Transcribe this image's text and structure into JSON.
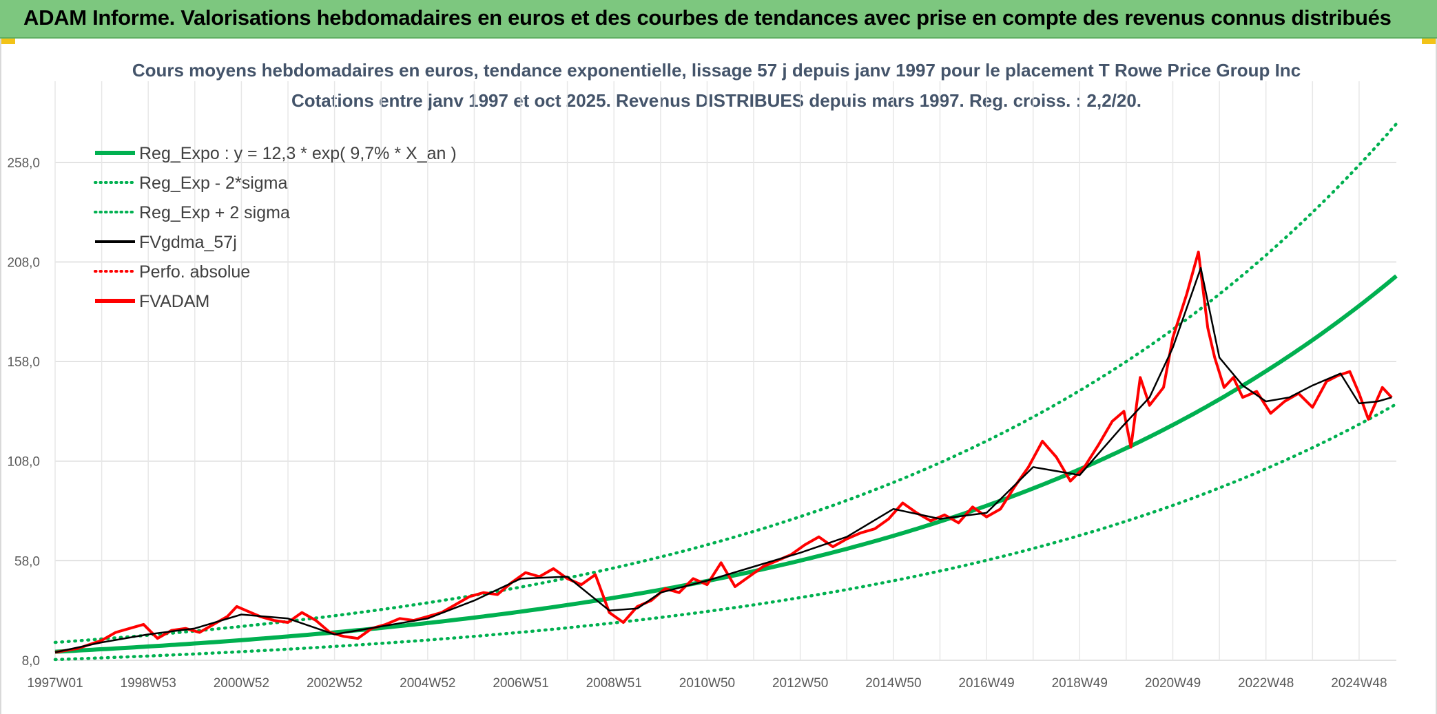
{
  "banner": {
    "title": "ADAM Informe. Valorisations hebdomadaires en euros et des courbes de tendances avec prise en compte des revenus connus distribués"
  },
  "colors": {
    "banner_bg": "#7dc77f",
    "regression": "#00b050",
    "smooth": "#000000",
    "fvadam": "#ff0000",
    "grid": "#d9d9d9"
  },
  "chart_data": {
    "type": "line",
    "title": "Cours moyens hebdomadaires en euros, tendance exponentielle, lissage 57 j depuis janv 1997 pour le placement T Rowe Price Group Inc",
    "subtitle": "Cotations entre janv 1997 et oct 2025. Revenus DISTRIBUES depuis mars 1997. Reg. croiss. : 2,2/20.",
    "xlabel": "",
    "ylabel": "",
    "ylim": [
      8,
      278
    ],
    "xlim": [
      1997.0,
      2025.8
    ],
    "y_ticks": [
      "258,0",
      "208,0",
      "158,0",
      "108,0",
      "58,0",
      "8,0"
    ],
    "y_tick_values": [
      258,
      208,
      158,
      108,
      58,
      8
    ],
    "x_ticks": [
      "1997W01",
      "1998W53",
      "2000W52",
      "2002W52",
      "2004W52",
      "2006W51",
      "2008W51",
      "2010W50",
      "2012W50",
      "2014W50",
      "2016W49",
      "2018W49",
      "2020W49",
      "2022W48",
      "2024W48"
    ],
    "x_tick_values": [
      1997.0,
      1999.0,
      2001.0,
      2003.0,
      2005.0,
      2007.0,
      2009.0,
      2011.0,
      2013.0,
      2015.0,
      2017.0,
      2019.0,
      2021.0,
      2023.0,
      2025.0
    ],
    "grid": true,
    "legend_position": "top-left",
    "legend": [
      {
        "label": "Reg_Expo : y = 12,3 * exp( 9,7% *  X_an )",
        "color": "#00b050",
        "style": "solid-thick"
      },
      {
        "label": "Reg_Exp - 2*sigma",
        "color": "#00b050",
        "style": "dotted"
      },
      {
        "label": "Reg_Exp + 2 sigma",
        "color": "#00b050",
        "style": "dotted"
      },
      {
        "label": "FVgdma_57j",
        "color": "#000000",
        "style": "solid"
      },
      {
        "label": "Perfo. absolue",
        "color": "#ff0000",
        "style": "dotted"
      },
      {
        "label": "FVADAM",
        "color": "#ff0000",
        "style": "solid-thick"
      }
    ],
    "regression": {
      "a": 12.3,
      "rate": 0.097,
      "lower_factor": 0.68,
      "upper_factor": 1.38
    },
    "series": [
      {
        "name": "FVADAM",
        "x": [
          1997.0,
          1997.5,
          1998.0,
          1998.3,
          1998.6,
          1998.9,
          1999.2,
          1999.5,
          1999.8,
          2000.1,
          2000.4,
          2000.7,
          2000.9,
          2001.1,
          2001.4,
          2001.7,
          2002.0,
          2002.3,
          2002.6,
          2002.9,
          2003.2,
          2003.5,
          2003.8,
          2004.1,
          2004.4,
          2004.7,
          2005.0,
          2005.3,
          2005.6,
          2005.9,
          2006.2,
          2006.5,
          2006.8,
          2007.1,
          2007.4,
          2007.7,
          2008.0,
          2008.3,
          2008.6,
          2008.9,
          2009.2,
          2009.5,
          2009.8,
          2010.1,
          2010.4,
          2010.7,
          2011.0,
          2011.3,
          2011.6,
          2011.9,
          2012.2,
          2012.5,
          2012.8,
          2013.1,
          2013.4,
          2013.7,
          2014.0,
          2014.3,
          2014.6,
          2014.9,
          2015.2,
          2015.5,
          2015.8,
          2016.1,
          2016.4,
          2016.7,
          2017.0,
          2017.3,
          2017.6,
          2017.9,
          2018.2,
          2018.5,
          2018.8,
          2019.1,
          2019.4,
          2019.7,
          2019.95,
          2020.1,
          2020.3,
          2020.5,
          2020.8,
          2021.0,
          2021.3,
          2021.55,
          2021.75,
          2021.9,
          2022.1,
          2022.3,
          2022.5,
          2022.8,
          2023.1,
          2023.4,
          2023.7,
          2024.0,
          2024.3,
          2024.55,
          2024.8,
          2025.0,
          2025.2,
          2025.5,
          2025.7
        ],
        "values": [
          12,
          14,
          18,
          22,
          24,
          26,
          19,
          23,
          24,
          22,
          26,
          30,
          35,
          33,
          30,
          28,
          27,
          32,
          28,
          22,
          20,
          19,
          24,
          26,
          29,
          28,
          30,
          32,
          36,
          40,
          42,
          41,
          47,
          52,
          50,
          54,
          49,
          46,
          51,
          32,
          27,
          35,
          38,
          44,
          42,
          49,
          46,
          57,
          45,
          50,
          55,
          58,
          61,
          66,
          70,
          65,
          69,
          72,
          74,
          79,
          87,
          82,
          78,
          81,
          77,
          85,
          80,
          84,
          95,
          105,
          118,
          110,
          98,
          105,
          116,
          128,
          133,
          115,
          150,
          136,
          145,
          170,
          192,
          213,
          175,
          160,
          145,
          150,
          140,
          143,
          132,
          138,
          142,
          135,
          148,
          151,
          153,
          142,
          129,
          145,
          140
        ]
      },
      {
        "name": "FVgdma_57j",
        "x": [
          1997.0,
          1998.0,
          1999.0,
          2000.0,
          2001.0,
          2002.0,
          2003.0,
          2004.0,
          2005.0,
          2006.0,
          2007.0,
          2008.0,
          2008.9,
          2009.5,
          2010.0,
          2011.0,
          2012.0,
          2013.0,
          2014.0,
          2015.0,
          2016.0,
          2017.0,
          2018.0,
          2019.0,
          2019.9,
          2020.5,
          2021.0,
          2021.6,
          2022.0,
          2022.5,
          2023.0,
          2023.5,
          2024.0,
          2024.6,
          2025.0,
          2025.4,
          2025.7
        ],
        "values": [
          12,
          17,
          21,
          24,
          31,
          29,
          21,
          25,
          29,
          38,
          49,
          50,
          33,
          34,
          42,
          48,
          55,
          62,
          70,
          84,
          79,
          82,
          105,
          101,
          125,
          140,
          165,
          205,
          160,
          146,
          138,
          140,
          146,
          152,
          137,
          138,
          140
        ]
      }
    ]
  }
}
